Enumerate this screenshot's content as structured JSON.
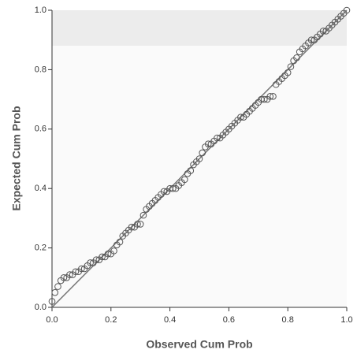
{
  "chart_data": {
    "type": "scatter",
    "x_label": "Observed Cum Prob",
    "y_label": "Expected Cum Prob",
    "x": [
      0.0,
      0.01,
      0.02,
      0.03,
      0.04,
      0.05,
      0.06,
      0.07,
      0.08,
      0.09,
      0.1,
      0.11,
      0.12,
      0.13,
      0.14,
      0.15,
      0.16,
      0.17,
      0.18,
      0.19,
      0.2,
      0.21,
      0.22,
      0.23,
      0.24,
      0.25,
      0.26,
      0.27,
      0.28,
      0.29,
      0.3,
      0.31,
      0.32,
      0.33,
      0.34,
      0.35,
      0.36,
      0.37,
      0.38,
      0.39,
      0.4,
      0.41,
      0.42,
      0.43,
      0.44,
      0.45,
      0.46,
      0.47,
      0.48,
      0.49,
      0.5,
      0.51,
      0.52,
      0.53,
      0.54,
      0.55,
      0.56,
      0.57,
      0.58,
      0.59,
      0.6,
      0.61,
      0.62,
      0.63,
      0.64,
      0.65,
      0.66,
      0.67,
      0.68,
      0.69,
      0.7,
      0.71,
      0.72,
      0.73,
      0.74,
      0.75,
      0.76,
      0.77,
      0.78,
      0.79,
      0.8,
      0.81,
      0.82,
      0.83,
      0.84,
      0.85,
      0.86,
      0.87,
      0.88,
      0.89,
      0.9,
      0.91,
      0.92,
      0.93,
      0.94,
      0.95,
      0.96,
      0.97,
      0.98,
      0.99,
      1.0
    ],
    "values": [
      0.02,
      0.05,
      0.07,
      0.09,
      0.1,
      0.1,
      0.11,
      0.11,
      0.12,
      0.12,
      0.13,
      0.13,
      0.14,
      0.15,
      0.15,
      0.16,
      0.16,
      0.17,
      0.17,
      0.18,
      0.18,
      0.19,
      0.21,
      0.22,
      0.24,
      0.25,
      0.26,
      0.27,
      0.27,
      0.28,
      0.28,
      0.31,
      0.33,
      0.34,
      0.35,
      0.36,
      0.37,
      0.38,
      0.39,
      0.39,
      0.4,
      0.4,
      0.4,
      0.41,
      0.42,
      0.43,
      0.45,
      0.46,
      0.48,
      0.49,
      0.5,
      0.52,
      0.54,
      0.55,
      0.55,
      0.56,
      0.57,
      0.57,
      0.58,
      0.59,
      0.6,
      0.61,
      0.62,
      0.63,
      0.64,
      0.64,
      0.65,
      0.66,
      0.67,
      0.68,
      0.69,
      0.7,
      0.7,
      0.7,
      0.71,
      0.71,
      0.75,
      0.76,
      0.77,
      0.78,
      0.79,
      0.81,
      0.83,
      0.84,
      0.86,
      0.87,
      0.88,
      0.89,
      0.9,
      0.9,
      0.91,
      0.92,
      0.93,
      0.93,
      0.94,
      0.95,
      0.96,
      0.97,
      0.98,
      0.99,
      1.0
    ],
    "color": "#555555",
    "xlim": [
      0,
      1
    ],
    "ylim": [
      0,
      1
    ],
    "xticks": [
      {
        "value": 0,
        "label": "0.0"
      },
      0.2,
      0.4,
      0.6,
      0.8,
      {
        "value": 1,
        "label": "1.0"
      }
    ],
    "yticks": [
      {
        "value": 0,
        "label": "0.0"
      },
      0.2,
      0.4,
      0.6,
      0.8,
      {
        "value": 1,
        "label": "1.0"
      }
    ]
  }
}
